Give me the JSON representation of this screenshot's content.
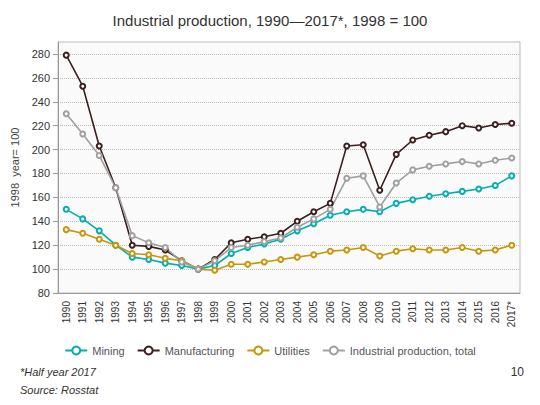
{
  "chart_data": {
    "type": "line",
    "title": "Industrial production, 1990—2017*, 1998 = 100",
    "ylabel": "1998  year= 100",
    "annotations": [
      "*Half year 2017",
      "Source: Rosstat",
      "10"
    ],
    "categories": [
      "1990",
      "1991",
      "1992",
      "1993",
      "1994",
      "1995",
      "1996",
      "1997",
      "1998",
      "1999",
      "2000",
      "2001",
      "2002",
      "2003",
      "2004",
      "2005",
      "2006",
      "2007",
      "2008",
      "2009",
      "2010",
      "2011",
      "2012",
      "2013",
      "2014",
      "2015",
      "2016",
      "2017*"
    ],
    "series": [
      {
        "name": "Mining",
        "color": "#00AFAF",
        "values": [
          150,
          142,
          132,
          120,
          110,
          108,
          105,
          103,
          100,
          103,
          113,
          118,
          121,
          125,
          132,
          138,
          145,
          148,
          150,
          148,
          155,
          158,
          161,
          163,
          165,
          167,
          170,
          178
        ]
      },
      {
        "name": "Manufacturing",
        "color": "#3B2020",
        "values": [
          279,
          253,
          203,
          168,
          120,
          119,
          116,
          107,
          100,
          108,
          122,
          125,
          127,
          130,
          140,
          148,
          155,
          203,
          204,
          166,
          196,
          208,
          212,
          215,
          220,
          218,
          221,
          222
        ]
      },
      {
        "name": "Utilities",
        "color": "#C8960A",
        "values": [
          133,
          130,
          125,
          120,
          113,
          112,
          109,
          107,
          100,
          99,
          104,
          104,
          106,
          108,
          110,
          112,
          115,
          116,
          118,
          111,
          115,
          117,
          116,
          116,
          118,
          115,
          116,
          120
        ]
      },
      {
        "name": "Industrial production, total",
        "color": "#A0A0A0",
        "values": [
          230,
          213,
          195,
          168,
          128,
          122,
          118,
          106,
          100,
          107,
          118,
          120,
          123,
          126,
          135,
          142,
          150,
          176,
          178,
          152,
          172,
          183,
          186,
          188,
          190,
          188,
          191,
          193
        ]
      }
    ],
    "ylim": [
      80,
      290
    ],
    "yticks": [
      80,
      100,
      120,
      140,
      160,
      180,
      200,
      220,
      240,
      260,
      280
    ],
    "grid": true,
    "legend": "bottom",
    "marker": "circle"
  }
}
